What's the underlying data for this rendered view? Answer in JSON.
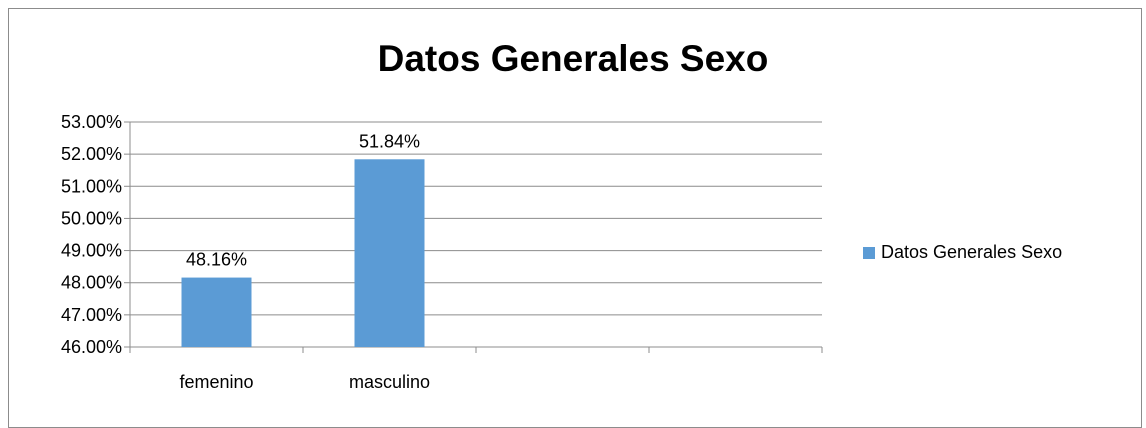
{
  "chart_data": {
    "type": "bar",
    "title": "Datos Generales Sexo",
    "categories": [
      "femenino",
      "masculino",
      "",
      ""
    ],
    "series": [
      {
        "name": "Datos Generales Sexo",
        "values": [
          48.16,
          51.84,
          null,
          null
        ],
        "color": "#5b9bd5"
      }
    ],
    "data_labels": [
      "48.16%",
      "51.84%"
    ],
    "y_ticks": [
      "46.00%",
      "47.00%",
      "48.00%",
      "49.00%",
      "50.00%",
      "51.00%",
      "52.00%",
      "53.00%"
    ],
    "ylim": [
      46,
      53
    ],
    "xlabel": "",
    "ylabel": "",
    "grid": true,
    "legend_position": "right"
  }
}
